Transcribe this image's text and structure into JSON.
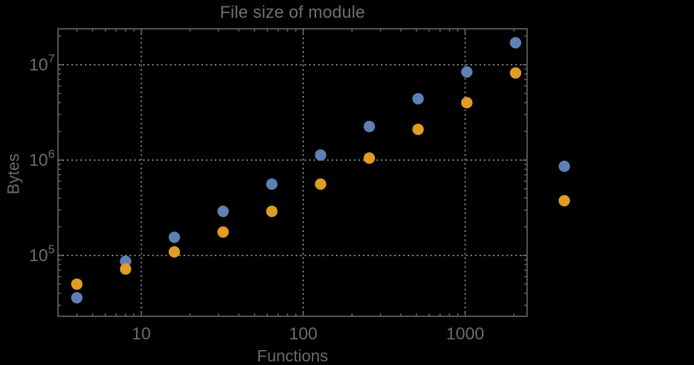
{
  "page": {
    "background_color": "#000000"
  },
  "chart": {
    "title": "File size of module",
    "x_axis_label": "Functions",
    "y_axis_label": "Bytes",
    "style": {
      "frame_color": "#6e6e6e",
      "grid_color": "#8a8a8a",
      "text_color": "#6c6c6c",
      "series_blue": "#5E81B5",
      "series_orange": "#E09C24",
      "background": "#000000",
      "grid_style": "dotted"
    }
  },
  "chart_data": {
    "type": "scatter",
    "title": "File size of module",
    "xlabel": "Functions",
    "ylabel": "Bytes",
    "x_scale": "log",
    "y_scale": "log",
    "x_range": [
      3.05,
      2400
    ],
    "y_range": [
      23000,
      24000000
    ],
    "grid": "dotted lines at decade ticks",
    "legend": "none",
    "x_ticks": [
      {
        "label": "10",
        "value": 10
      },
      {
        "label": "100",
        "value": 100
      },
      {
        "label": "1000",
        "value": 1000
      }
    ],
    "y_ticks": [
      {
        "base": "10",
        "exponent": "5",
        "value": 100000
      },
      {
        "base": "10",
        "exponent": "6",
        "value": 1000000
      },
      {
        "base": "10",
        "exponent": "7",
        "value": 10000000
      }
    ],
    "series": [
      {
        "name": "series-blue",
        "color": "#5E81B5",
        "x": [
          4,
          8,
          16,
          32,
          64,
          128,
          256,
          512,
          1024,
          2048,
          4096
        ],
        "y": [
          36000,
          87000,
          155000,
          290000,
          560000,
          1130000,
          2250000,
          4400000,
          8400000,
          17000000,
          860000
        ]
      },
      {
        "name": "series-orange",
        "color": "#E09C24",
        "x": [
          4,
          8,
          16,
          32,
          64,
          128,
          256,
          512,
          1024,
          2048,
          4096
        ],
        "y": [
          50000,
          72000,
          109000,
          176000,
          290000,
          560000,
          1050000,
          2100000,
          4000000,
          8200000,
          375000
        ]
      }
    ],
    "note": "points at x=4096 are rendered outside the right edge of the plot frame (unclipped)"
  }
}
